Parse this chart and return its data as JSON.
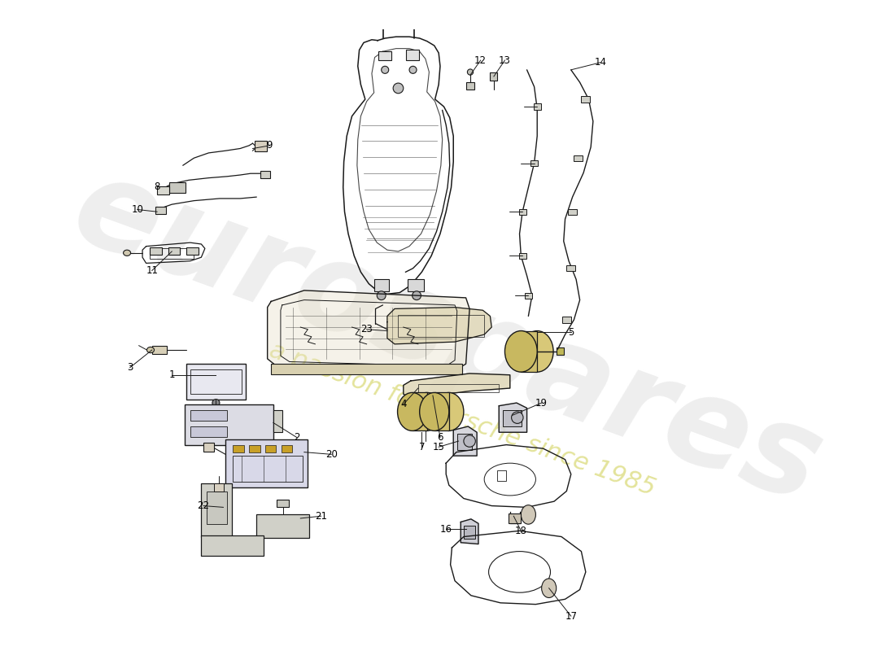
{
  "bg_color": "#ffffff",
  "line_color": "#1a1a1a",
  "watermark_text1": "eurospares",
  "watermark_text2": "a passion for Porsche since 1985",
  "watermark_color": "#c8c8c8",
  "watermark_yellow": "#d8d870",
  "label_color": "#000000",
  "label_fontsize": 8.5,
  "fig_width": 11.0,
  "fig_height": 8.0,
  "dpi": 100
}
